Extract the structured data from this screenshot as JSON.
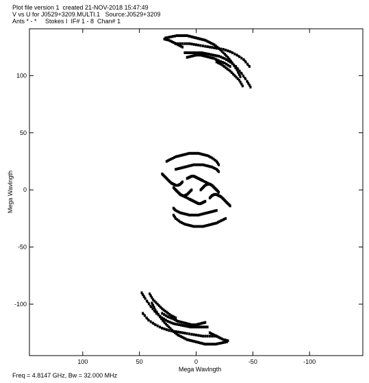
{
  "header": {
    "line1": "Plot file version 1  created 21-NOV-2018 15:47:49",
    "line2": "V vs U for J0529+3209.MULTI.1   Source:J0529+3209",
    "line3": "Ants * - *     Stokes I  IF# 1 - 8  Chan# 1"
  },
  "footer": "Freq = 4.8147 GHz, Bw = 32.000 MHz",
  "chart_data": {
    "type": "scatter",
    "xlabel": "Mega Wavlngth",
    "ylabel": "Mega Wavlngth",
    "xlim": [
      147,
      -147
    ],
    "ylim": [
      -145,
      141
    ],
    "x_ticks": [
      100,
      50,
      0,
      -50,
      -100
    ],
    "x_tick_labels": [
      "100",
      "50",
      "0",
      "-50",
      "-100"
    ],
    "y_ticks": [
      100,
      50,
      0,
      -50,
      -100
    ],
    "y_tick_labels": [
      "100",
      "50",
      "0",
      "-50",
      "-100"
    ],
    "grid": false,
    "series": [
      {
        "tracks": [
          {
            "u": [
              27,
              22,
              17,
              12,
              8,
              4,
              0,
              -4,
              -8,
              -12,
              -16,
              -20,
              -24,
              -28,
              -32,
              -36,
              -39
            ],
            "v": [
              133,
              134,
              135,
              135,
              135,
              134,
              133,
              132,
              131,
              129,
              127,
              124,
              120,
              116,
              111,
              105,
              99
            ]
          },
          {
            "u": [
              18,
              12,
              6,
              0,
              -6,
              -12,
              -18,
              -24,
              -30,
              -36,
              -42,
              -47
            ],
            "v": [
              128,
              128,
              128,
              127,
              126,
              125,
              124,
              123,
              121,
              118,
              114,
              108
            ]
          },
          {
            "u": [
              10,
              5,
              0,
              -5,
              -10,
              -15,
              -20,
              -25,
              -30,
              -35,
              -40,
              -45,
              -48
            ],
            "v": [
              120,
              120,
              120,
              120,
              119,
              118,
              117,
              115,
              112,
              108,
              102,
              95,
              90
            ]
          },
          {
            "u": [
              8,
              4,
              0,
              -4,
              -8,
              -12,
              -16,
              -20,
              -25,
              -30
            ],
            "v": [
              116,
              117,
              118,
              118,
              117,
              116,
              115,
              113,
              111,
              108
            ]
          },
          {
            "u": [
              28,
              24,
              20,
              16,
              12
            ],
            "v": [
              132,
              131,
              129,
              127,
              125
            ]
          },
          {
            "u": [
              -18,
              -22,
              -26,
              -30,
              -34,
              -38,
              -41
            ],
            "v": [
              112,
              110,
              107,
              104,
              100,
              96,
              91
            ]
          },
          {
            "u": [
              -27,
              -22,
              -17,
              -12,
              -8,
              -4,
              0,
              4,
              8,
              12,
              16,
              20,
              24,
              28,
              32,
              36,
              39
            ],
            "v": [
              -133,
              -134,
              -135,
              -135,
              -135,
              -134,
              -133,
              -132,
              -131,
              -129,
              -127,
              -124,
              -120,
              -116,
              -111,
              -105,
              -99
            ]
          },
          {
            "u": [
              -18,
              -12,
              -6,
              0,
              6,
              12,
              18,
              24,
              30,
              36,
              42,
              47
            ],
            "v": [
              -128,
              -128,
              -128,
              -127,
              -126,
              -125,
              -124,
              -123,
              -121,
              -118,
              -114,
              -108
            ]
          },
          {
            "u": [
              -10,
              -5,
              0,
              5,
              10,
              15,
              20,
              25,
              30,
              35,
              40,
              45,
              48
            ],
            "v": [
              -120,
              -120,
              -120,
              -120,
              -119,
              -118,
              -117,
              -115,
              -112,
              -108,
              -102,
              -95,
              -90
            ]
          },
          {
            "u": [
              -8,
              -4,
              0,
              4,
              8,
              12,
              16,
              20,
              25,
              30
            ],
            "v": [
              -116,
              -117,
              -118,
              -118,
              -117,
              -116,
              -115,
              -113,
              -111,
              -108
            ]
          },
          {
            "u": [
              -28,
              -24,
              -20,
              -16,
              -12
            ],
            "v": [
              -132,
              -131,
              -129,
              -127,
              -125
            ]
          },
          {
            "u": [
              18,
              22,
              26,
              30,
              34,
              38,
              41
            ],
            "v": [
              -112,
              -110,
              -107,
              -104,
              -100,
              -96,
              -91
            ]
          },
          {
            "u": [
              26,
              22,
              18,
              14,
              10,
              6,
              2,
              -2,
              -6,
              -10,
              -14,
              -18,
              -20
            ],
            "v": [
              25,
              27,
              29,
              30,
              31,
              32,
              32,
              32,
              31,
              30,
              28,
              25,
              22
            ]
          },
          {
            "u": [
              18,
              14,
              10,
              6,
              2,
              -2,
              -6,
              -10,
              -14,
              -18,
              -20
            ],
            "v": [
              18,
              19,
              20,
              21,
              22,
              22,
              22,
              21,
              20,
              18,
              16
            ]
          },
          {
            "u": [
              30,
              28,
              26,
              24,
              22,
              20,
              18,
              16,
              14,
              12
            ],
            "v": [
              14,
              12,
              10,
              8,
              6,
              5,
              4,
              4,
              5,
              7
            ]
          },
          {
            "u": [
              8,
              6,
              4,
              2,
              0,
              -2,
              -4,
              -6,
              -10,
              -14,
              -16,
              -18
            ],
            "v": [
              10,
              11,
              12,
              12,
              11,
              10,
              9,
              8,
              6,
              4,
              2,
              0
            ]
          },
          {
            "u": [
              20,
              18,
              16,
              14,
              12,
              10,
              8,
              6,
              4
            ],
            "v": [
              2,
              0,
              -2,
              -4,
              -5,
              -5,
              -4,
              -2,
              0
            ]
          },
          {
            "u": [
              -26,
              -22,
              -18,
              -14,
              -10,
              -6,
              -2,
              2,
              6,
              10,
              14,
              18,
              20
            ],
            "v": [
              -25,
              -27,
              -29,
              -30,
              -31,
              -32,
              -32,
              -32,
              -31,
              -30,
              -28,
              -25,
              -22
            ]
          },
          {
            "u": [
              -18,
              -14,
              -10,
              -6,
              -2,
              2,
              6,
              10,
              14,
              18,
              20
            ],
            "v": [
              -18,
              -19,
              -20,
              -21,
              -22,
              -22,
              -22,
              -21,
              -20,
              -18,
              -16
            ]
          },
          {
            "u": [
              -30,
              -28,
              -26,
              -24,
              -22,
              -20,
              -18,
              -16,
              -14,
              -12
            ],
            "v": [
              -14,
              -12,
              -10,
              -8,
              -6,
              -5,
              -4,
              -4,
              -5,
              -7
            ]
          },
          {
            "u": [
              -8,
              -6,
              -4,
              -2,
              0,
              2,
              4,
              6,
              10,
              14,
              16,
              18
            ],
            "v": [
              -10,
              -11,
              -12,
              -12,
              -11,
              -10,
              -9,
              -8,
              -6,
              -4,
              -2,
              0
            ]
          },
          {
            "u": [
              -20,
              -18,
              -16,
              -14,
              -12,
              -10,
              -8,
              -6,
              -4
            ],
            "v": [
              -2,
              0,
              2,
              4,
              5,
              5,
              4,
              2,
              0
            ]
          }
        ]
      }
    ]
  }
}
